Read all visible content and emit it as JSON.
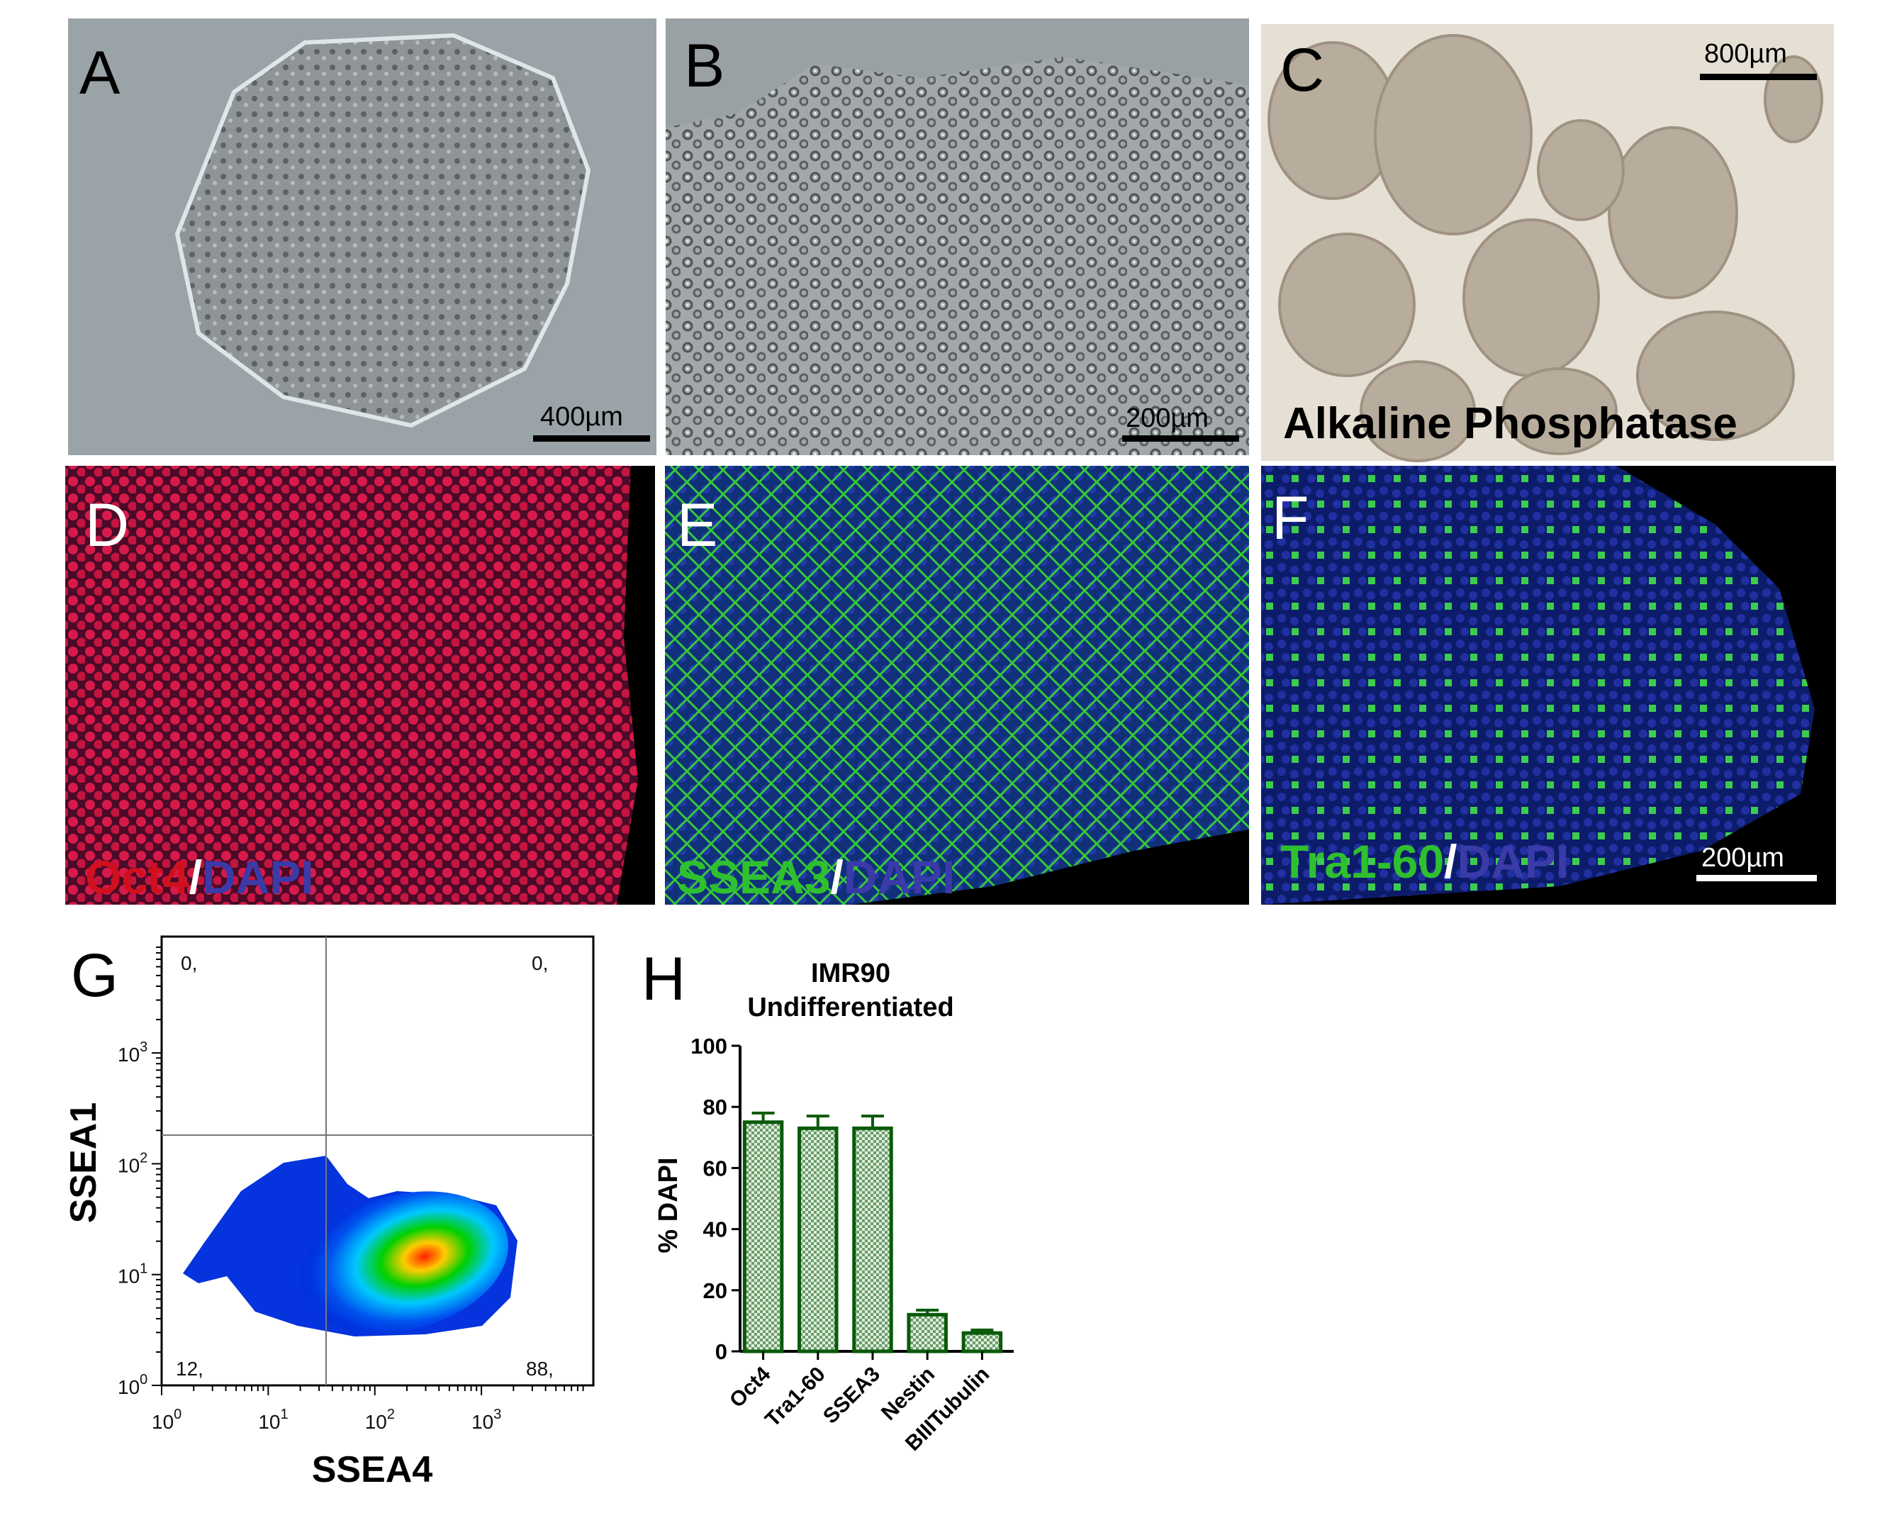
{
  "panels": {
    "A": {
      "label": "A",
      "scale_bar": "400µm"
    },
    "B": {
      "label": "B",
      "scale_bar": "200µm"
    },
    "C": {
      "label": "C",
      "scale_bar": "800µm",
      "caption": "Alkaline Phosphatase"
    },
    "D": {
      "label": "D",
      "marker": "Oct4",
      "sep": "/",
      "counterstain": "DAPI",
      "marker_color": "#d0101c"
    },
    "E": {
      "label": "E",
      "marker": "SSEA3",
      "sep": "/",
      "counterstain": "DAPI",
      "marker_color": "#2fc02f"
    },
    "F": {
      "label": "F",
      "marker": "Tra1-60",
      "sep": "/",
      "counterstain": "DAPI",
      "marker_color": "#2fc02f",
      "scale_bar": "200µm"
    },
    "counterstain_color": "#3a3aa8"
  },
  "flow": {
    "label": "G",
    "xlabel": "SSEA4",
    "ylabel": "SSEA1",
    "x_ticks": [
      "10",
      "10",
      "10",
      "10"
    ],
    "x_exps": [
      "0",
      "1",
      "2",
      "3"
    ],
    "y_ticks": [
      "10",
      "10",
      "10",
      "10"
    ],
    "y_exps": [
      "0",
      "1",
      "2",
      "3"
    ],
    "scale": "log",
    "quadrants": {
      "upper_left": "0,",
      "upper_right": "0,",
      "lower_left": "12,",
      "lower_right": "88,"
    },
    "colormap": [
      "#0033dd",
      "#00c8ff",
      "#00d000",
      "#ffff00",
      "#ff2000"
    ]
  },
  "chart_data": {
    "type": "bar",
    "label": "H",
    "title": "IMR90",
    "subtitle": "Undifferentiated",
    "ylabel": "% DAPI",
    "xlabel": "",
    "categories": [
      "Oct4",
      "Tra1-60",
      "SSEA3",
      "Nestin",
      "BIIITubulin"
    ],
    "values": [
      75,
      73,
      73,
      12,
      6
    ],
    "errors": [
      3,
      4,
      4,
      1.5,
      1
    ],
    "ylim": [
      0,
      100
    ],
    "yticks": [
      "0",
      "20",
      "40",
      "60",
      "80",
      "100"
    ],
    "bar_color": "#0a5a0a",
    "grid": false
  }
}
